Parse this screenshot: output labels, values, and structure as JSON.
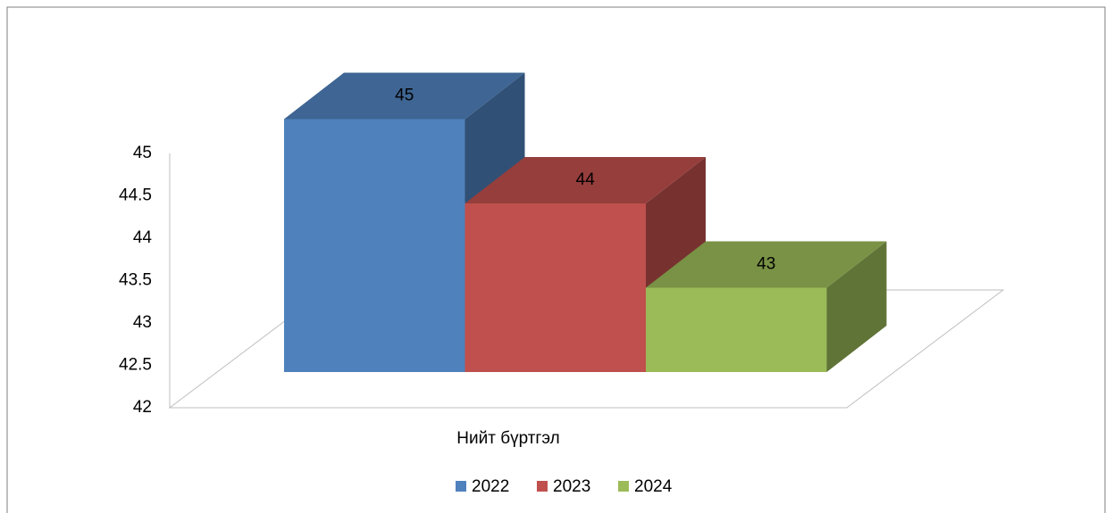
{
  "chart_data": {
    "type": "bar3d",
    "categories": [
      "Нийт бүртгэл"
    ],
    "series": [
      {
        "name": "2022",
        "color": "#4f81bd",
        "values": [
          45
        ]
      },
      {
        "name": "2023",
        "color": "#c0504d",
        "values": [
          44
        ]
      },
      {
        "name": "2024",
        "color": "#9bbb59",
        "values": [
          43
        ]
      }
    ],
    "ylim": [
      42,
      45
    ],
    "yticks": [
      42,
      42.5,
      43,
      43.5,
      44,
      44.5,
      45
    ],
    "legend": "bottom"
  }
}
